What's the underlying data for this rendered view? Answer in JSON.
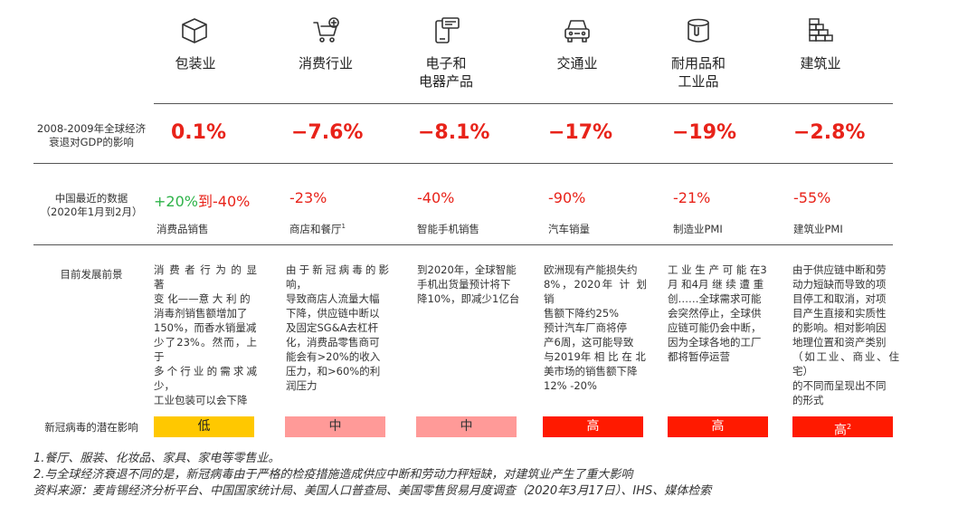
{
  "categories": [
    {
      "icon": "box-icon",
      "label_line1": "包装业",
      "label_line2": ""
    },
    {
      "icon": "shopping-cart-icon",
      "label_line1": "消费行业",
      "label_line2": ""
    },
    {
      "icon": "phone-device-icon",
      "label_line1": "电子和",
      "label_line2": "电器产品"
    },
    {
      "icon": "car-icon",
      "label_line1": "交通业",
      "label_line2": ""
    },
    {
      "icon": "paint-bucket-icon",
      "label_line1": "耐用品和",
      "label_line2": "工业品"
    },
    {
      "icon": "bricks-icon",
      "label_line1": "建筑业",
      "label_line2": ""
    }
  ],
  "rows": {
    "gdp_label_line1": "2008-2009年全球经济",
    "gdp_label_line2": "衰退对GDP的影响",
    "china_label_line1": "中国最近的数据",
    "china_label_line2": "（2020年1月到2月）",
    "outlook_label": "目前发展前景",
    "impact_label": "新冠病毒的潜在影响"
  },
  "gdp_values": [
    "0.1%",
    "−7.6%",
    "−8.1%",
    "−17%",
    "−19%",
    "−2.8%"
  ],
  "china_data": [
    {
      "value_pos": "+20%",
      "value_joiner": "到",
      "value_neg": "-40%",
      "metric": "消费品销售"
    },
    {
      "value_pos": "",
      "value_joiner": "",
      "value_neg": "-23%",
      "metric": "商店和餐厅",
      "metric_sup": "1"
    },
    {
      "value_pos": "",
      "value_joiner": "",
      "value_neg": "-40%",
      "metric": "智能手机销售"
    },
    {
      "value_pos": "",
      "value_joiner": "",
      "value_neg": "-90%",
      "metric": "汽车销量"
    },
    {
      "value_pos": "",
      "value_joiner": "",
      "value_neg": "-21%",
      "metric": "制造业PMI"
    },
    {
      "value_pos": "",
      "value_joiner": "",
      "value_neg": "-55%",
      "metric": "建筑业PMI"
    }
  ],
  "outlook": [
    [
      "消 费 者 行 为 的 显 著",
      "变 化——意 大 利 的",
      "消毒剂销售额增加了",
      "150%，而香水销量减",
      "少了23%。然而，上于",
      "多个行业的需求减少，",
      "工业包装可以会下降"
    ],
    [
      "由于新冠病毒的影响，",
      "导致商店人流量大幅",
      "下降，供应链中断以",
      "及固定SG&A去杠杆",
      "化，消费品零售商可",
      "能会有>20%的收入",
      "压力，和>60%的利",
      "润压力"
    ],
    [
      "到2020年，全球智能",
      "手机出货量预计将下",
      "降10%，即减少1亿台"
    ],
    [
      "欧洲现有产能损失约",
      "8%，2020年 计 划 销",
      "售额下降约25%",
      "预计汽车厂商将停",
      "产6周，这可能导致",
      "与2019年 相 比 在 北",
      "美市场的销售额下降",
      "12% -20%"
    ],
    [
      "工 业 生 产 可 能 在3",
      "月 和4月 继 续 遭 重",
      "创……全球需求可能",
      "会突然停止，全球供",
      "应链可能仍会中断，",
      "因为全球各地的工厂",
      "都将暂停运营"
    ],
    [
      "由于供应链中断和劳",
      "动力短缺而导致的项",
      "目停工和取消，对项",
      "目产生直接和实质性",
      "的影响。相对影响因",
      "地理位置和资产类别",
      "（如工业、商业、住宅）",
      "的不同而呈现出不同",
      "的形式"
    ]
  ],
  "impact": [
    {
      "label": "低",
      "sup": "",
      "color": "#ffc800",
      "text_color": "#222222"
    },
    {
      "label": "中",
      "sup": "",
      "color": "#ff9a98",
      "text_color": "#333333"
    },
    {
      "label": "中",
      "sup": "",
      "color": "#ff9a98",
      "text_color": "#333333"
    },
    {
      "label": "高",
      "sup": "",
      "color": "#ff1a00",
      "text_color": "#ffffff"
    },
    {
      "label": "高",
      "sup": "",
      "color": "#ff1a00",
      "text_color": "#ffffff"
    },
    {
      "label": "高",
      "sup": "2",
      "color": "#ff1a00",
      "text_color": "#ffffff"
    }
  ],
  "notes": [
    "1.餐厅、服装、化妆品、家具、家电等零售业。",
    "2.与全球经济衰退不同的是，新冠病毒由于严格的检疫措施造成供应中断和劳动力秤短缺，对建筑业产生了重大影响",
    "资料来源：麦肯锡经济分析平台、中国国家统计局、美国人口普查局、美国零售贸易月度调查（2020年3月17日）、IHS、媒体检索"
  ],
  "colors": {
    "accent_red": "#e8231a",
    "positive_green": "#2fb34a"
  }
}
